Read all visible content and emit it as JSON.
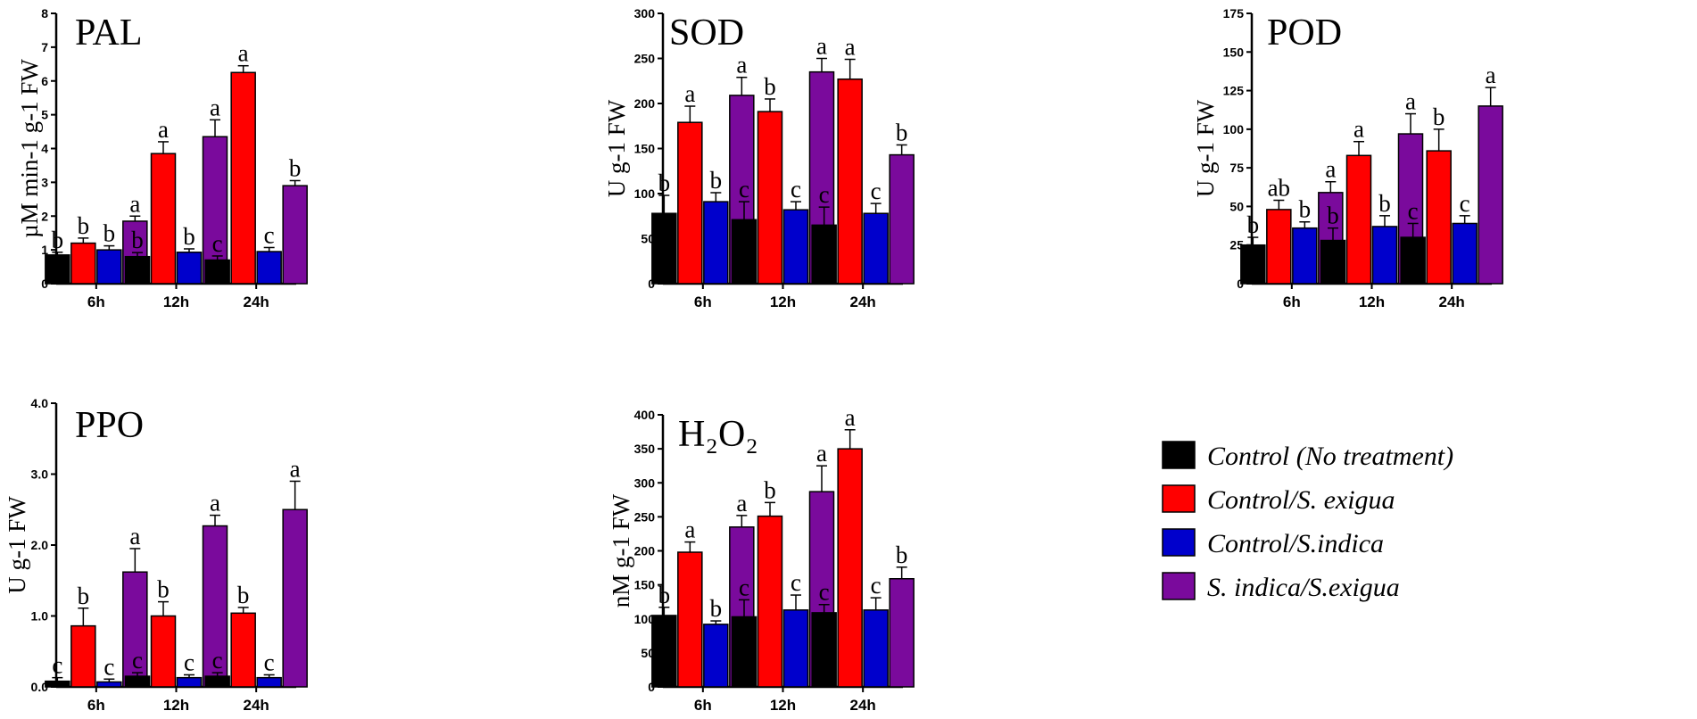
{
  "colors": {
    "control": "#000000",
    "control_s_exigua": "#ff0000",
    "control_s_indica": "#0000cc",
    "s_indica_s_exigua": "#7a0a9c"
  },
  "legend": {
    "items": [
      {
        "label": "Control (No treatment)",
        "color": "#000000"
      },
      {
        "label": "Control/S. exigua",
        "color": "#ff0000"
      },
      {
        "label": "Control/S.indica",
        "color": "#0000cc"
      },
      {
        "label": "S. indica/S.exigua",
        "color": "#7a0a9c"
      }
    ]
  },
  "chart_data": [
    {
      "type": "bar",
      "title": "PAL",
      "ylabel": "µM min-1 g-1 FW",
      "categories": [
        "6h",
        "12h",
        "24h"
      ],
      "ylim": [
        0,
        8
      ],
      "yticks": [
        "0",
        "1",
        "2",
        "3",
        "4",
        "5",
        "6",
        "7",
        "8"
      ],
      "series": [
        {
          "name": "Control (No treatment)",
          "values": [
            0.85,
            0.8,
            0.7
          ],
          "errors": [
            0.08,
            0.12,
            0.12
          ],
          "sig": [
            "b",
            "b",
            "c"
          ]
        },
        {
          "name": "Control/S. exigua",
          "values": [
            1.2,
            3.85,
            6.25
          ],
          "errors": [
            0.15,
            0.35,
            0.2
          ],
          "sig": [
            "b",
            "a",
            "a"
          ]
        },
        {
          "name": "Control/S.indica",
          "values": [
            1.0,
            0.93,
            0.95
          ],
          "errors": [
            0.12,
            0.1,
            0.12
          ],
          "sig": [
            "b",
            "b",
            "c"
          ]
        },
        {
          "name": "S. indica/S.exigua",
          "values": [
            1.85,
            4.35,
            2.9
          ],
          "errors": [
            0.15,
            0.5,
            0.15
          ],
          "sig": [
            "a",
            "a",
            "b"
          ]
        }
      ]
    },
    {
      "type": "bar",
      "title": "SOD",
      "ylabel": "U g-1 FW",
      "categories": [
        "6h",
        "12h",
        "24h"
      ],
      "ylim": [
        0,
        300
      ],
      "yticks": [
        "0",
        "50",
        "100",
        "150",
        "200",
        "250",
        "300"
      ],
      "series": [
        {
          "name": "Control (No treatment)",
          "values": [
            78,
            71,
            65
          ],
          "errors": [
            20,
            20,
            20
          ],
          "sig": [
            "b",
            "c",
            "c"
          ]
        },
        {
          "name": "Control/S. exigua",
          "values": [
            179,
            191,
            227
          ],
          "errors": [
            18,
            14,
            22
          ],
          "sig": [
            "a",
            "b",
            "a"
          ]
        },
        {
          "name": "Control/S.indica",
          "values": [
            91,
            82,
            78
          ],
          "errors": [
            10,
            9,
            11
          ],
          "sig": [
            "b",
            "c",
            "c"
          ]
        },
        {
          "name": "S. indica/S.exigua",
          "values": [
            209,
            235,
            143
          ],
          "errors": [
            20,
            15,
            11
          ],
          "sig": [
            "a",
            "a",
            "b"
          ]
        }
      ]
    },
    {
      "type": "bar",
      "title": "POD",
      "ylabel": "U g-1 FW",
      "categories": [
        "6h",
        "12h",
        "24h"
      ],
      "ylim": [
        0,
        175
      ],
      "yticks": [
        "0",
        "25",
        "50",
        "75",
        "100",
        "125",
        "150",
        "175"
      ],
      "series": [
        {
          "name": "Control (No treatment)",
          "values": [
            25,
            28,
            30
          ],
          "errors": [
            5,
            8,
            9
          ],
          "sig": [
            "b",
            "b",
            "c"
          ]
        },
        {
          "name": "Control/S. exigua",
          "values": [
            48,
            83,
            86
          ],
          "errors": [
            6,
            9,
            14
          ],
          "sig": [
            "ab",
            "a",
            "b"
          ]
        },
        {
          "name": "Control/S.indica",
          "values": [
            36,
            37,
            39
          ],
          "errors": [
            4,
            7,
            5
          ],
          "sig": [
            "b",
            "b",
            "c"
          ]
        },
        {
          "name": "S. indica/S.exigua",
          "values": [
            59,
            97,
            115
          ],
          "errors": [
            7,
            13,
            12
          ],
          "sig": [
            "a",
            "a",
            "a"
          ]
        }
      ]
    },
    {
      "type": "bar",
      "title": "PPO",
      "ylabel": "U g-1 FW",
      "categories": [
        "6h",
        "12h",
        "24h"
      ],
      "ylim": [
        0,
        4
      ],
      "yticks": [
        "0.0",
        "1.0",
        "2.0",
        "3.0",
        "4.0"
      ],
      "series": [
        {
          "name": "Control (No treatment)",
          "values": [
            0.08,
            0.15,
            0.15
          ],
          "errors": [
            0.05,
            0.05,
            0.05
          ],
          "sig": [
            "c",
            "c",
            "c"
          ]
        },
        {
          "name": "Control/S. exigua",
          "values": [
            0.86,
            1.0,
            1.04
          ],
          "errors": [
            0.25,
            0.2,
            0.08
          ],
          "sig": [
            "b",
            "b",
            "b"
          ]
        },
        {
          "name": "Control/S.indica",
          "values": [
            0.07,
            0.13,
            0.13
          ],
          "errors": [
            0.04,
            0.04,
            0.04
          ],
          "sig": [
            "c",
            "c",
            "c"
          ]
        },
        {
          "name": "S. indica/S.exigua",
          "values": [
            1.62,
            2.27,
            2.5
          ],
          "errors": [
            0.33,
            0.15,
            0.4
          ],
          "sig": [
            "a",
            "a",
            "a"
          ]
        }
      ]
    },
    {
      "type": "bar",
      "title": "H₂O₂",
      "ylabel": "nM g-1 FW",
      "categories": [
        "6h",
        "12h",
        "24h"
      ],
      "ylim": [
        0,
        400
      ],
      "yticks": [
        "0",
        "50",
        "100",
        "150",
        "200",
        "250",
        "300",
        "350",
        "400"
      ],
      "series": [
        {
          "name": "Control (No treatment)",
          "values": [
            105,
            103,
            109
          ],
          "errors": [
            12,
            25,
            12
          ],
          "sig": [
            "b",
            "c",
            "c"
          ]
        },
        {
          "name": "Control/S. exigua",
          "values": [
            198,
            251,
            350
          ],
          "errors": [
            15,
            20,
            28
          ],
          "sig": [
            "a",
            "b",
            "a"
          ]
        },
        {
          "name": "Control/S.indica",
          "values": [
            92,
            113,
            113
          ],
          "errors": [
            5,
            22,
            18
          ],
          "sig": [
            "b",
            "c",
            "c"
          ]
        },
        {
          "name": "S. indica/S.exigua",
          "values": [
            235,
            287,
            159
          ],
          "errors": [
            17,
            38,
            17
          ],
          "sig": [
            "a",
            "a",
            "b"
          ]
        }
      ]
    }
  ]
}
